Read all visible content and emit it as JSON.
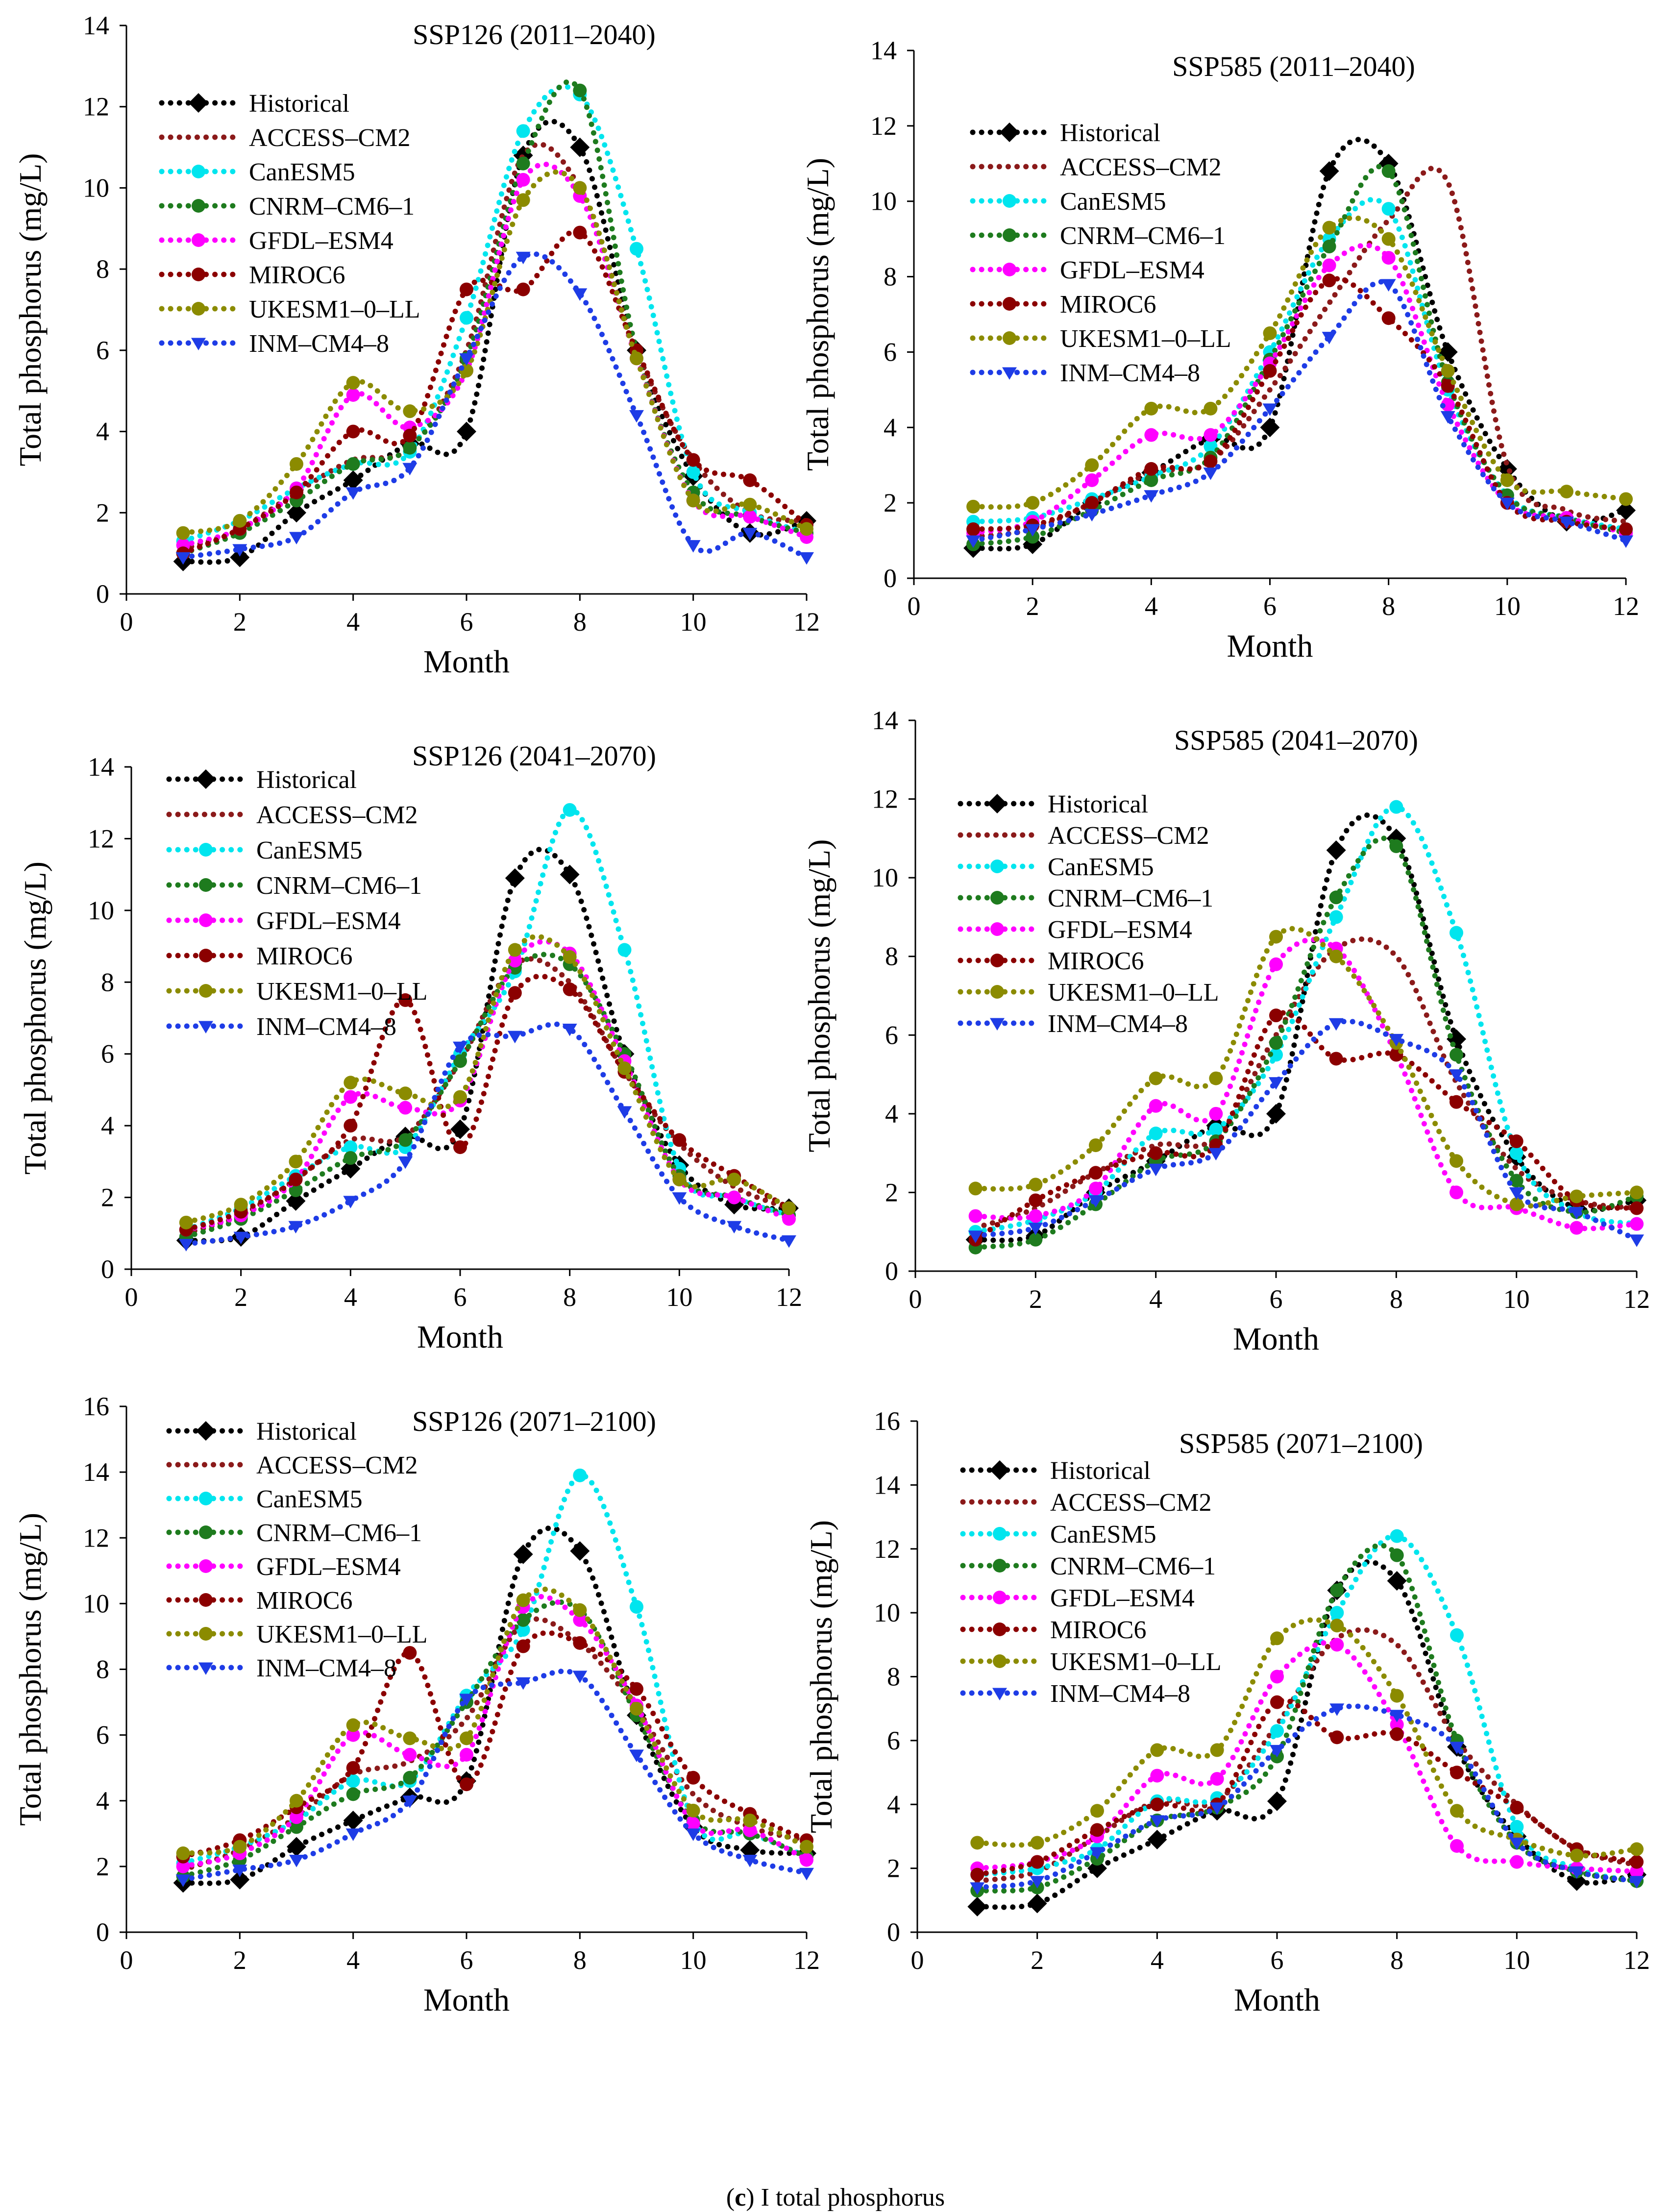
{
  "caption": {
    "label": "c",
    "text": "I total phosphorus"
  },
  "legend": [
    {
      "name": "Historical",
      "color": "#000000",
      "marker": "diamond"
    },
    {
      "name": "ACCESS–CM2",
      "color": "#8B1A1A",
      "marker": "none"
    },
    {
      "name": "CanESM5",
      "color": "#00E5EE",
      "marker": "circle"
    },
    {
      "name": "CNRM–CM6–1",
      "color": "#1E7B1E",
      "marker": "circle"
    },
    {
      "name": "GFDL–ESM4",
      "color": "#FF00FF",
      "marker": "circle"
    },
    {
      "name": "MIROC6",
      "color": "#8B0000",
      "marker": "circle"
    },
    {
      "name": "UKESM1–0–LL",
      "color": "#8B8B00",
      "marker": "circle"
    },
    {
      "name": "INM–CM4–8",
      "color": "#1E3CE6",
      "marker": "triangle"
    }
  ],
  "chart_data": [
    {
      "type": "line",
      "title": "SSP126 (2011–2040)",
      "xlabel": "Month",
      "ylabel": "Total phosphorus (mg/L)",
      "xlim": [
        0,
        12
      ],
      "ylim": [
        0,
        14
      ],
      "xticks": [
        0,
        2,
        4,
        6,
        8,
        10,
        12
      ],
      "yticks": [
        0,
        2,
        4,
        6,
        8,
        10,
        12,
        14
      ],
      "x": [
        1,
        2,
        3,
        4,
        5,
        6,
        7,
        8,
        9,
        10,
        11,
        12
      ],
      "series": [
        {
          "name": "Historical",
          "values": [
            0.8,
            0.9,
            2.0,
            2.8,
            3.7,
            4.0,
            10.8,
            11.0,
            6.0,
            2.9,
            1.5,
            1.8
          ]
        },
        {
          "name": "ACCESS–CM2",
          "values": [
            1.1,
            1.6,
            2.5,
            3.3,
            3.6,
            6.0,
            10.8,
            10.0,
            6.0,
            3.3,
            2.0,
            1.8
          ]
        },
        {
          "name": "CanESM5",
          "values": [
            1.3,
            1.8,
            2.6,
            3.2,
            3.5,
            6.8,
            11.4,
            12.3,
            8.5,
            3.0,
            2.0,
            1.5
          ]
        },
        {
          "name": "CNRM–CM6–1",
          "values": [
            1.0,
            1.5,
            2.3,
            3.2,
            3.6,
            5.8,
            10.6,
            12.4,
            6.0,
            2.5,
            1.9,
            1.5
          ]
        },
        {
          "name": "GFDL–ESM4",
          "values": [
            1.2,
            1.6,
            2.6,
            4.9,
            4.1,
            5.5,
            10.2,
            9.8,
            5.8,
            2.3,
            1.9,
            1.4
          ]
        },
        {
          "name": "MIROC6",
          "values": [
            1.0,
            1.6,
            2.5,
            4.0,
            3.9,
            7.5,
            7.5,
            8.9,
            6.0,
            3.3,
            2.8,
            1.7
          ]
        },
        {
          "name": "UKESM1–0–LL",
          "values": [
            1.5,
            1.8,
            3.2,
            5.2,
            4.5,
            5.5,
            9.7,
            10.0,
            5.8,
            2.3,
            2.2,
            1.6
          ]
        },
        {
          "name": "INM–CM4–8",
          "values": [
            0.9,
            1.1,
            1.4,
            2.5,
            3.1,
            5.8,
            8.3,
            7.4,
            4.4,
            1.2,
            1.5,
            0.9
          ]
        }
      ]
    },
    {
      "type": "line",
      "title": "SSP585 (2011–2040)",
      "xlabel": "Month",
      "ylabel": "Total phosphorus (mg/L)",
      "xlim": [
        0,
        12
      ],
      "ylim": [
        0,
        14
      ],
      "xticks": [
        0,
        2,
        4,
        6,
        8,
        10,
        12
      ],
      "yticks": [
        0,
        2,
        4,
        6,
        8,
        10,
        12,
        14
      ],
      "x": [
        1,
        2,
        3,
        4,
        5,
        6,
        7,
        8,
        9,
        10,
        11,
        12
      ],
      "series": [
        {
          "name": "Historical",
          "values": [
            0.8,
            0.9,
            2.0,
            2.8,
            3.7,
            4.0,
            10.8,
            11.0,
            6.0,
            2.9,
            1.5,
            1.8
          ]
        },
        {
          "name": "ACCESS–CM2",
          "values": [
            1.1,
            1.3,
            2.0,
            2.8,
            3.1,
            5.0,
            7.3,
            9.5,
            10.5,
            3.0,
            1.8,
            1.5
          ]
        },
        {
          "name": "CanESM5",
          "values": [
            1.5,
            1.6,
            2.1,
            2.7,
            3.5,
            6.0,
            9.0,
            9.8,
            5.0,
            2.2,
            1.6,
            1.3
          ]
        },
        {
          "name": "CNRM–CM6–1",
          "values": [
            0.9,
            1.1,
            1.8,
            2.6,
            3.2,
            5.8,
            8.8,
            10.8,
            5.2,
            2.2,
            1.6,
            1.2
          ]
        },
        {
          "name": "GFDL–ESM4",
          "values": [
            1.2,
            1.5,
            2.6,
            3.8,
            3.8,
            5.7,
            8.3,
            8.5,
            4.6,
            2.0,
            1.6,
            1.2
          ]
        },
        {
          "name": "MIROC6",
          "values": [
            1.3,
            1.4,
            2.0,
            2.9,
            3.1,
            5.5,
            7.9,
            6.9,
            5.1,
            2.0,
            1.5,
            1.3
          ]
        },
        {
          "name": "UKESM1–0–LL",
          "values": [
            1.9,
            2.0,
            3.0,
            4.5,
            4.5,
            6.5,
            9.3,
            9.0,
            5.5,
            2.6,
            2.3,
            2.1
          ]
        },
        {
          "name": "INM–CM4–8",
          "values": [
            1.0,
            1.3,
            1.7,
            2.2,
            2.8,
            4.5,
            6.4,
            7.8,
            4.3,
            2.0,
            1.5,
            1.0
          ]
        }
      ]
    },
    {
      "type": "line",
      "title": "SSP126 (2041–2070)",
      "xlabel": "Month",
      "ylabel": "Total phosphorus (mg/L)",
      "xlim": [
        0,
        12
      ],
      "ylim": [
        0,
        14
      ],
      "xticks": [
        0,
        2,
        4,
        6,
        8,
        10,
        12
      ],
      "yticks": [
        0,
        2,
        4,
        6,
        8,
        10,
        12,
        14
      ],
      "x": [
        1,
        2,
        3,
        4,
        5,
        6,
        7,
        8,
        9,
        10,
        11,
        12
      ],
      "series": [
        {
          "name": "Historical",
          "values": [
            0.8,
            0.9,
            1.9,
            2.8,
            3.7,
            3.9,
            10.9,
            11.0,
            6.0,
            2.9,
            1.8,
            1.7
          ]
        },
        {
          "name": "ACCESS–CM2",
          "values": [
            1.0,
            1.5,
            2.5,
            3.6,
            3.7,
            5.8,
            8.5,
            8.0,
            5.5,
            3.5,
            2.3,
            1.7
          ]
        },
        {
          "name": "CanESM5",
          "values": [
            1.1,
            1.7,
            2.6,
            3.4,
            3.4,
            6.0,
            8.3,
            12.8,
            8.9,
            2.8,
            2.0,
            1.5
          ]
        },
        {
          "name": "CNRM–CM6–1",
          "values": [
            0.9,
            1.4,
            2.2,
            3.1,
            3.6,
            5.8,
            8.4,
            8.5,
            6.0,
            2.6,
            2.0,
            1.5
          ]
        },
        {
          "name": "GFDL–ESM4",
          "values": [
            1.1,
            1.5,
            2.5,
            4.8,
            4.5,
            4.7,
            8.6,
            8.8,
            5.8,
            2.5,
            2.0,
            1.4
          ]
        },
        {
          "name": "MIROC6",
          "values": [
            1.1,
            1.6,
            2.5,
            4.0,
            7.5,
            3.4,
            7.7,
            7.8,
            5.5,
            3.6,
            2.6,
            1.7
          ]
        },
        {
          "name": "UKESM1–0–LL",
          "values": [
            1.3,
            1.8,
            3.0,
            5.2,
            4.9,
            4.8,
            8.9,
            8.7,
            5.6,
            2.5,
            2.5,
            1.7
          ]
        },
        {
          "name": "INM–CM4–8",
          "values": [
            0.7,
            0.9,
            1.2,
            1.9,
            3.0,
            6.2,
            6.5,
            6.7,
            4.4,
            2.0,
            1.2,
            0.8
          ]
        }
      ]
    },
    {
      "type": "line",
      "title": "SSP585 (2041–2070)",
      "xlabel": "Month",
      "ylabel": "Total phosphorus (mg/L)",
      "xlim": [
        0,
        12
      ],
      "ylim": [
        0,
        14
      ],
      "xticks": [
        0,
        2,
        4,
        6,
        8,
        10,
        12
      ],
      "yticks": [
        0,
        2,
        4,
        6,
        8,
        10,
        12,
        14
      ],
      "x": [
        1,
        2,
        3,
        4,
        5,
        6,
        7,
        8,
        9,
        10,
        11,
        12
      ],
      "series": [
        {
          "name": "Historical",
          "values": [
            0.8,
            0.9,
            2.0,
            2.8,
            3.7,
            4.0,
            10.7,
            11.0,
            5.9,
            2.9,
            1.6,
            1.8
          ]
        },
        {
          "name": "ACCESS–CM2",
          "values": [
            1.1,
            1.6,
            2.5,
            3.2,
            3.4,
            6.0,
            8.2,
            8.0,
            4.8,
            2.6,
            1.8,
            1.6
          ]
        },
        {
          "name": "CanESM5",
          "values": [
            1.0,
            1.3,
            2.0,
            3.5,
            3.6,
            5.5,
            9.0,
            11.8,
            8.6,
            3.0,
            1.5,
            1.2
          ]
        },
        {
          "name": "CNRM–CM6–1",
          "values": [
            0.6,
            0.8,
            1.7,
            2.8,
            3.3,
            5.8,
            9.5,
            10.8,
            5.5,
            2.3,
            1.5,
            1.9
          ]
        },
        {
          "name": "GFDL–ESM4",
          "values": [
            1.4,
            1.4,
            2.1,
            4.2,
            4.0,
            7.8,
            8.2,
            5.5,
            2.0,
            1.6,
            1.1,
            1.2
          ]
        },
        {
          "name": "MIROC6",
          "values": [
            0.8,
            1.8,
            2.5,
            3.0,
            3.2,
            6.5,
            5.4,
            5.5,
            4.3,
            3.3,
            1.8,
            1.6
          ]
        },
        {
          "name": "UKESM1–0–LL",
          "values": [
            2.1,
            2.2,
            3.2,
            4.9,
            4.9,
            8.5,
            8.0,
            5.8,
            2.8,
            1.7,
            1.9,
            2.0
          ]
        },
        {
          "name": "INM–CM4–8",
          "values": [
            0.9,
            1.1,
            1.8,
            2.6,
            3.0,
            4.8,
            6.3,
            5.9,
            5.0,
            2.0,
            1.5,
            0.8
          ]
        }
      ]
    },
    {
      "type": "line",
      "title": "SSP126 (2071–2100)",
      "xlabel": "Month",
      "ylabel": "Total phosphorus (mg/L)",
      "xlim": [
        0,
        12
      ],
      "ylim": [
        0,
        16
      ],
      "xticks": [
        0,
        2,
        4,
        6,
        8,
        10,
        12
      ],
      "yticks": [
        0,
        2,
        4,
        6,
        8,
        10,
        12,
        14,
        16
      ],
      "x": [
        1,
        2,
        3,
        4,
        5,
        6,
        7,
        8,
        9,
        10,
        11,
        12
      ],
      "series": [
        {
          "name": "Historical",
          "values": [
            1.5,
            1.6,
            2.6,
            3.4,
            4.1,
            4.6,
            11.5,
            11.6,
            6.6,
            3.2,
            2.5,
            2.4
          ]
        },
        {
          "name": "ACCESS–CM2",
          "values": [
            1.9,
            2.5,
            3.5,
            4.8,
            5.2,
            6.5,
            9.4,
            8.8,
            6.8,
            4.2,
            3.2,
            2.8
          ]
        },
        {
          "name": "CanESM5",
          "values": [
            2.1,
            2.6,
            3.4,
            4.6,
            4.6,
            7.2,
            9.2,
            13.9,
            9.9,
            3.4,
            3.0,
            2.3
          ]
        },
        {
          "name": "CNRM–CM6–1",
          "values": [
            1.7,
            2.2,
            3.2,
            4.2,
            4.7,
            7.0,
            9.5,
            9.8,
            6.6,
            3.4,
            3.0,
            2.3
          ]
        },
        {
          "name": "GFDL–ESM4",
          "values": [
            2.0,
            2.4,
            3.5,
            6.0,
            5.4,
            5.4,
            9.9,
            9.5,
            6.9,
            3.3,
            3.1,
            2.2
          ]
        },
        {
          "name": "MIROC6",
          "values": [
            2.3,
            2.8,
            3.8,
            5.0,
            8.5,
            4.5,
            8.7,
            8.8,
            7.4,
            4.7,
            3.6,
            2.8
          ]
        },
        {
          "name": "UKESM1–0–LL",
          "values": [
            2.4,
            2.6,
            4.0,
            6.3,
            5.9,
            5.9,
            10.1,
            9.8,
            6.8,
            3.7,
            3.4,
            2.6
          ]
        },
        {
          "name": "INM–CM4–8",
          "values": [
            1.6,
            1.9,
            2.2,
            3.0,
            4.0,
            7.1,
            7.6,
            7.8,
            5.4,
            3.0,
            2.2,
            1.8
          ]
        }
      ]
    },
    {
      "type": "line",
      "title": "SSP585 (2071–2100)",
      "xlabel": "Month",
      "ylabel": "Total phosphorus (mg/L)",
      "xlim": [
        0,
        12
      ],
      "ylim": [
        0,
        16
      ],
      "xticks": [
        0,
        2,
        4,
        6,
        8,
        10,
        12
      ],
      "yticks": [
        0,
        2,
        4,
        6,
        8,
        10,
        12,
        14,
        16
      ],
      "x": [
        1,
        2,
        3,
        4,
        5,
        6,
        7,
        8,
        9,
        10,
        11,
        12
      ],
      "series": [
        {
          "name": "Historical",
          "values": [
            0.8,
            0.9,
            2.0,
            2.9,
            3.8,
            4.1,
            10.7,
            11.0,
            5.8,
            3.0,
            1.6,
            1.8
          ]
        },
        {
          "name": "ACCESS–CM2",
          "values": [
            1.6,
            1.9,
            3.0,
            4.1,
            4.1,
            6.5,
            9.2,
            9.0,
            6.0,
            4.0,
            2.6,
            2.1
          ]
        },
        {
          "name": "CanESM5",
          "values": [
            1.8,
            2.0,
            2.6,
            4.1,
            4.2,
            6.3,
            10.0,
            12.4,
            9.3,
            3.3,
            2.0,
            1.6
          ]
        },
        {
          "name": "CNRM–CM6–1",
          "values": [
            1.3,
            1.4,
            2.3,
            3.5,
            3.9,
            5.5,
            10.7,
            11.8,
            6.0,
            2.8,
            1.9,
            1.6
          ]
        },
        {
          "name": "GFDL–ESM4",
          "values": [
            2.0,
            2.2,
            3.0,
            4.9,
            4.8,
            8.0,
            9.0,
            6.5,
            2.7,
            2.2,
            2.0,
            1.9
          ]
        },
        {
          "name": "MIROC6",
          "values": [
            1.8,
            2.2,
            3.2,
            4.0,
            4.0,
            7.2,
            6.1,
            6.2,
            5.0,
            3.9,
            2.6,
            2.2
          ]
        },
        {
          "name": "UKESM1–0–LL",
          "values": [
            2.8,
            2.8,
            3.8,
            5.7,
            5.7,
            9.2,
            9.6,
            7.4,
            3.8,
            2.9,
            2.4,
            2.6
          ]
        },
        {
          "name": "INM–CM4–8",
          "values": [
            1.4,
            1.6,
            2.5,
            3.5,
            3.9,
            5.7,
            7.0,
            6.8,
            5.8,
            2.8,
            1.9,
            1.6
          ]
        }
      ]
    }
  ]
}
